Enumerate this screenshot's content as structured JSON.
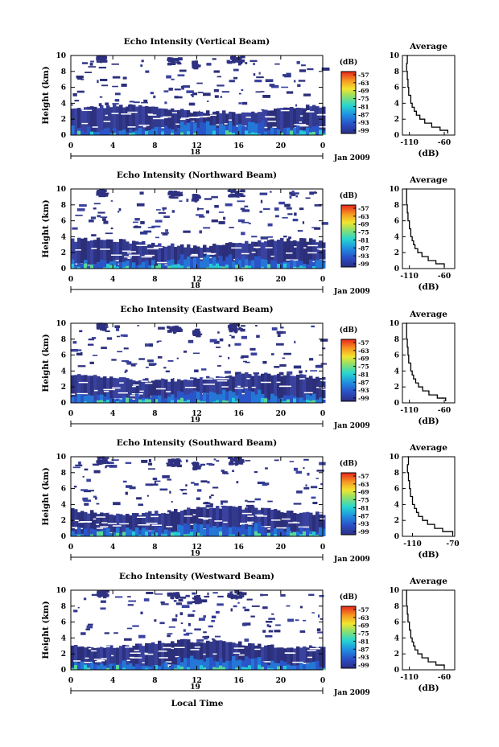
{
  "chart_data": {
    "type": "heatmap",
    "xlabel": "Local Time",
    "x_ticks": [
      "0",
      "4",
      "8",
      "12",
      "16",
      "20",
      "0"
    ],
    "date_label": "Jan 2009",
    "colorbar": {
      "title": "(dB)",
      "ticks": [
        "-57",
        "-63",
        "-69",
        "-75",
        "-81",
        "-87",
        "-93",
        "-99"
      ]
    },
    "panels": [
      {
        "title": "Echo Intensity (Vertical Beam)",
        "ylabel": "Height (km)",
        "y_ticks": [
          "0",
          "2",
          "4",
          "6",
          "8",
          "10"
        ],
        "ylim": [
          0,
          10
        ],
        "day_label": "18",
        "average": {
          "title": "Average",
          "xlabel": "(dB)",
          "x_ticks": [
            "-110",
            "-60"
          ],
          "xlim": [
            -120,
            -45
          ],
          "y_ticks": [
            "0",
            "2",
            "4",
            "6",
            "8",
            "10"
          ],
          "profile": [
            [
              -55,
              0.2
            ],
            [
              -66,
              0.6
            ],
            [
              -78,
              1.0
            ],
            [
              -88,
              1.5
            ],
            [
              -95,
              2.0
            ],
            [
              -100,
              2.5
            ],
            [
              -103,
              3.0
            ],
            [
              -106,
              3.5
            ],
            [
              -108,
              4.0
            ],
            [
              -111,
              5.0
            ],
            [
              -112,
              6.0
            ],
            [
              -113,
              7.0
            ],
            [
              -114,
              8.0
            ],
            [
              -113,
              9.0
            ],
            [
              -114,
              10.0
            ]
          ]
        }
      },
      {
        "title": "Echo Intensity (Northward Beam)",
        "ylabel": "Height (km)",
        "y_ticks": [
          "0",
          "2",
          "4",
          "6",
          "8",
          "10"
        ],
        "ylim": [
          0,
          10
        ],
        "day_label": "18",
        "average": {
          "title": "Average",
          "xlabel": "(dB)",
          "x_ticks": [
            "-110",
            "-60"
          ],
          "xlim": [
            -120,
            -45
          ],
          "y_ticks": [
            "0",
            "2",
            "4",
            "6",
            "8",
            "10"
          ],
          "profile": [
            [
              -60,
              0.2
            ],
            [
              -72,
              0.6
            ],
            [
              -83,
              1.0
            ],
            [
              -92,
              1.5
            ],
            [
              -98,
              2.0
            ],
            [
              -102,
              2.5
            ],
            [
              -104,
              3.0
            ],
            [
              -106,
              3.5
            ],
            [
              -108,
              4.0
            ],
            [
              -110,
              5.0
            ],
            [
              -112,
              6.0
            ],
            [
              -113,
              7.0
            ],
            [
              -114,
              8.0
            ],
            [
              -114,
              9.0
            ],
            [
              -113,
              10.0
            ]
          ]
        }
      },
      {
        "title": "Echo Intensity (Eastward Beam)",
        "ylabel": "Height (km)",
        "y_ticks": [
          "0",
          "2",
          "4",
          "6",
          "8",
          "10"
        ],
        "ylim": [
          0,
          10
        ],
        "day_label": "19",
        "average": {
          "title": "Average",
          "xlabel": "(dB)",
          "x_ticks": [
            "-110",
            "-60"
          ],
          "xlim": [
            -120,
            -45
          ],
          "y_ticks": [
            "0",
            "2",
            "4",
            "6",
            "8",
            "10"
          ],
          "profile": [
            [
              -58,
              0.2
            ],
            [
              -70,
              0.6
            ],
            [
              -82,
              1.0
            ],
            [
              -91,
              1.5
            ],
            [
              -97,
              2.0
            ],
            [
              -101,
              2.5
            ],
            [
              -104,
              3.0
            ],
            [
              -106,
              3.5
            ],
            [
              -108,
              4.0
            ],
            [
              -111,
              5.0
            ],
            [
              -112,
              6.0
            ],
            [
              -113,
              7.0
            ],
            [
              -114,
              8.0
            ],
            [
              -114,
              9.0
            ],
            [
              -113,
              10.0
            ]
          ]
        }
      },
      {
        "title": "Echo Intensity (Southward Beam)",
        "ylabel": "Height (km)",
        "y_ticks": [
          "0",
          "2",
          "4",
          "6",
          "8",
          "10"
        ],
        "ylim": [
          0,
          10
        ],
        "day_label": "19",
        "average": {
          "title": "Average",
          "xlabel": "(dB)",
          "x_ticks": [
            "-110",
            "-70"
          ],
          "xlim": [
            -120,
            -68
          ],
          "y_ticks": [
            "0",
            "2",
            "4",
            "6",
            "8",
            "10"
          ],
          "profile": [
            [
              -70,
              0.2
            ],
            [
              -80,
              0.6
            ],
            [
              -88,
              1.0
            ],
            [
              -95,
              1.5
            ],
            [
              -100,
              2.0
            ],
            [
              -104,
              2.5
            ],
            [
              -106,
              3.0
            ],
            [
              -108,
              3.5
            ],
            [
              -110,
              4.0
            ],
            [
              -112,
              5.0
            ],
            [
              -113,
              6.0
            ],
            [
              -114,
              7.0
            ],
            [
              -115,
              8.0
            ],
            [
              -114,
              9.0
            ],
            [
              -115,
              10.0
            ]
          ]
        }
      },
      {
        "title": "Echo Intensity (Westward Beam)",
        "ylabel": "Height (km)",
        "y_ticks": [
          "0",
          "2",
          "4",
          "6",
          "8",
          "10"
        ],
        "ylim": [
          0,
          10
        ],
        "day_label": "19",
        "average": {
          "title": "Average",
          "xlabel": "(dB)",
          "x_ticks": [
            "-110",
            "-60"
          ],
          "xlim": [
            -120,
            -45
          ],
          "y_ticks": [
            "0",
            "2",
            "4",
            "6",
            "8",
            "10"
          ],
          "profile": [
            [
              -60,
              0.2
            ],
            [
              -72,
              0.6
            ],
            [
              -83,
              1.0
            ],
            [
              -92,
              1.5
            ],
            [
              -98,
              2.0
            ],
            [
              -102,
              2.5
            ],
            [
              -104,
              3.0
            ],
            [
              -106,
              3.5
            ],
            [
              -108,
              4.0
            ],
            [
              -110,
              5.0
            ],
            [
              -112,
              6.0
            ],
            [
              -113,
              7.0
            ],
            [
              -114,
              8.0
            ],
            [
              -114,
              9.0
            ],
            [
              -113,
              10.0
            ]
          ]
        }
      }
    ]
  }
}
